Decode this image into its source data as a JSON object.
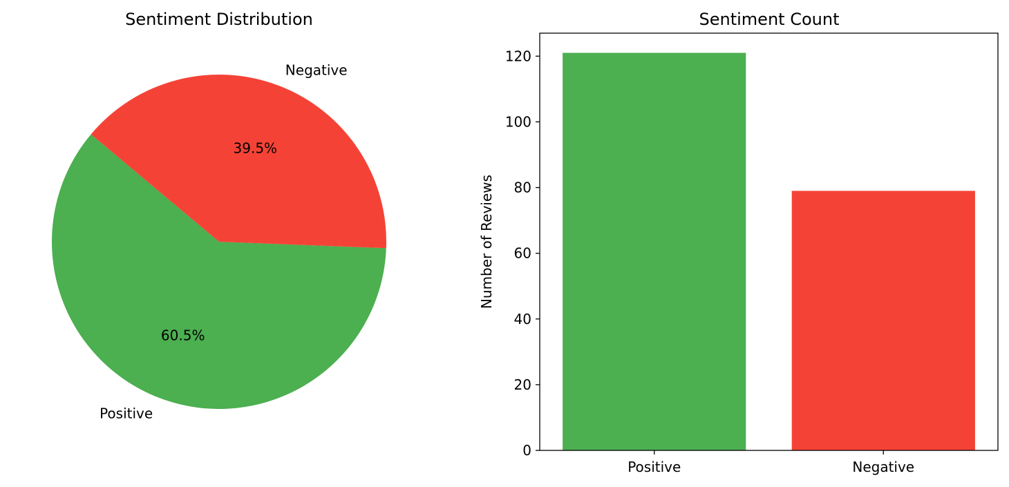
{
  "chart_data": [
    {
      "type": "pie",
      "title": "Sentiment Distribution",
      "categories": [
        "Positive",
        "Negative"
      ],
      "values": [
        60.5,
        39.5
      ],
      "value_labels": [
        "60.5%",
        "39.5%"
      ],
      "colors": [
        "#4caf50",
        "#f44336"
      ],
      "start_angle_deg": 140,
      "counterclockwise": true
    },
    {
      "type": "bar",
      "title": "Sentiment Count",
      "categories": [
        "Positive",
        "Negative"
      ],
      "values": [
        121,
        79
      ],
      "colors": [
        "#4caf50",
        "#f44336"
      ],
      "xlabel": "",
      "ylabel": "Number of Reviews",
      "ylim": [
        0,
        127
      ],
      "yticks": [
        0,
        20,
        40,
        60,
        80,
        100,
        120
      ],
      "grid": false
    }
  ]
}
